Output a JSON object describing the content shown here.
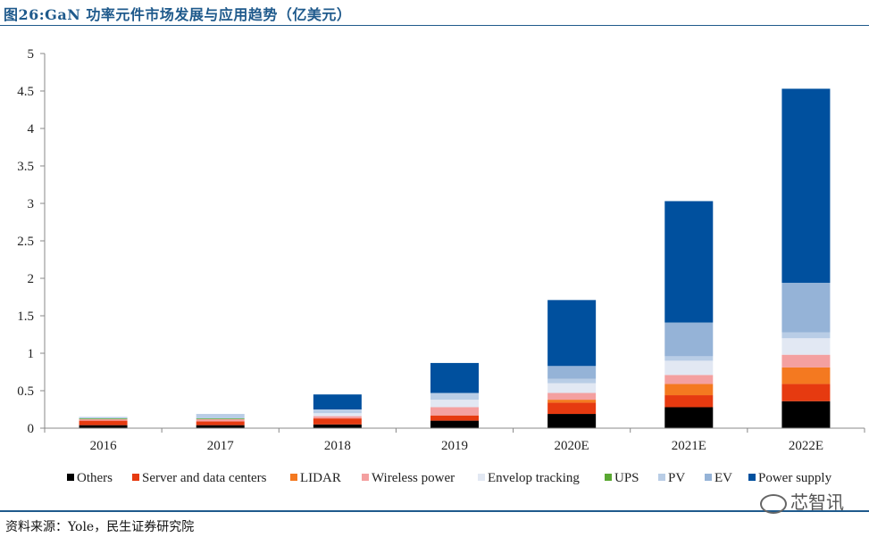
{
  "title": "图26:GaN 功率元件市场发展与应用趋势（亿美元）",
  "source": "资料来源：Yole，民生证券研究院",
  "watermark": "芯智讯",
  "chart_data": {
    "type": "bar",
    "stacked": true,
    "categories": [
      "2016",
      "2017",
      "2018",
      "2019",
      "2020E",
      "2021E",
      "2022E"
    ],
    "ylim": [
      0,
      5
    ],
    "yticks": [
      "0",
      "0.5",
      "1",
      "1.5",
      "2",
      "2.5",
      "3",
      "3.5",
      "4",
      "4.5",
      "5"
    ],
    "legend_position": "bottom",
    "series": [
      {
        "name": "Others",
        "color": "#000000",
        "values": [
          0.04,
          0.04,
          0.05,
          0.1,
          0.19,
          0.28,
          0.36
        ]
      },
      {
        "name": "Server and data centers",
        "color": "#e63a10",
        "values": [
          0.06,
          0.05,
          0.08,
          0.07,
          0.15,
          0.16,
          0.23
        ]
      },
      {
        "name": "LIDAR",
        "color": "#f47920",
        "values": [
          0.0,
          0.0,
          0.0,
          0.0,
          0.04,
          0.15,
          0.22
        ]
      },
      {
        "name": "Wireless power",
        "color": "#f4a0a0",
        "values": [
          0.02,
          0.03,
          0.03,
          0.11,
          0.09,
          0.12,
          0.17
        ]
      },
      {
        "name": "Envelop tracking",
        "color": "#e2e8f3",
        "values": [
          0.0,
          0.0,
          0.04,
          0.1,
          0.13,
          0.19,
          0.22
        ]
      },
      {
        "name": "UPS",
        "color": "#5aa832",
        "values": [
          0.01,
          0.01,
          0.0,
          0.0,
          0.0,
          0.0,
          0.0
        ]
      },
      {
        "name": "PV",
        "color": "#b9cde6",
        "values": [
          0.02,
          0.06,
          0.05,
          0.09,
          0.06,
          0.06,
          0.08
        ]
      },
      {
        "name": "EV",
        "color": "#95b3d7",
        "values": [
          0.0,
          0.0,
          0.0,
          0.0,
          0.17,
          0.45,
          0.66
        ]
      },
      {
        "name": "Power supply",
        "color": "#00509e",
        "values": [
          0.0,
          0.0,
          0.2,
          0.4,
          0.88,
          1.62,
          2.59
        ]
      }
    ]
  }
}
